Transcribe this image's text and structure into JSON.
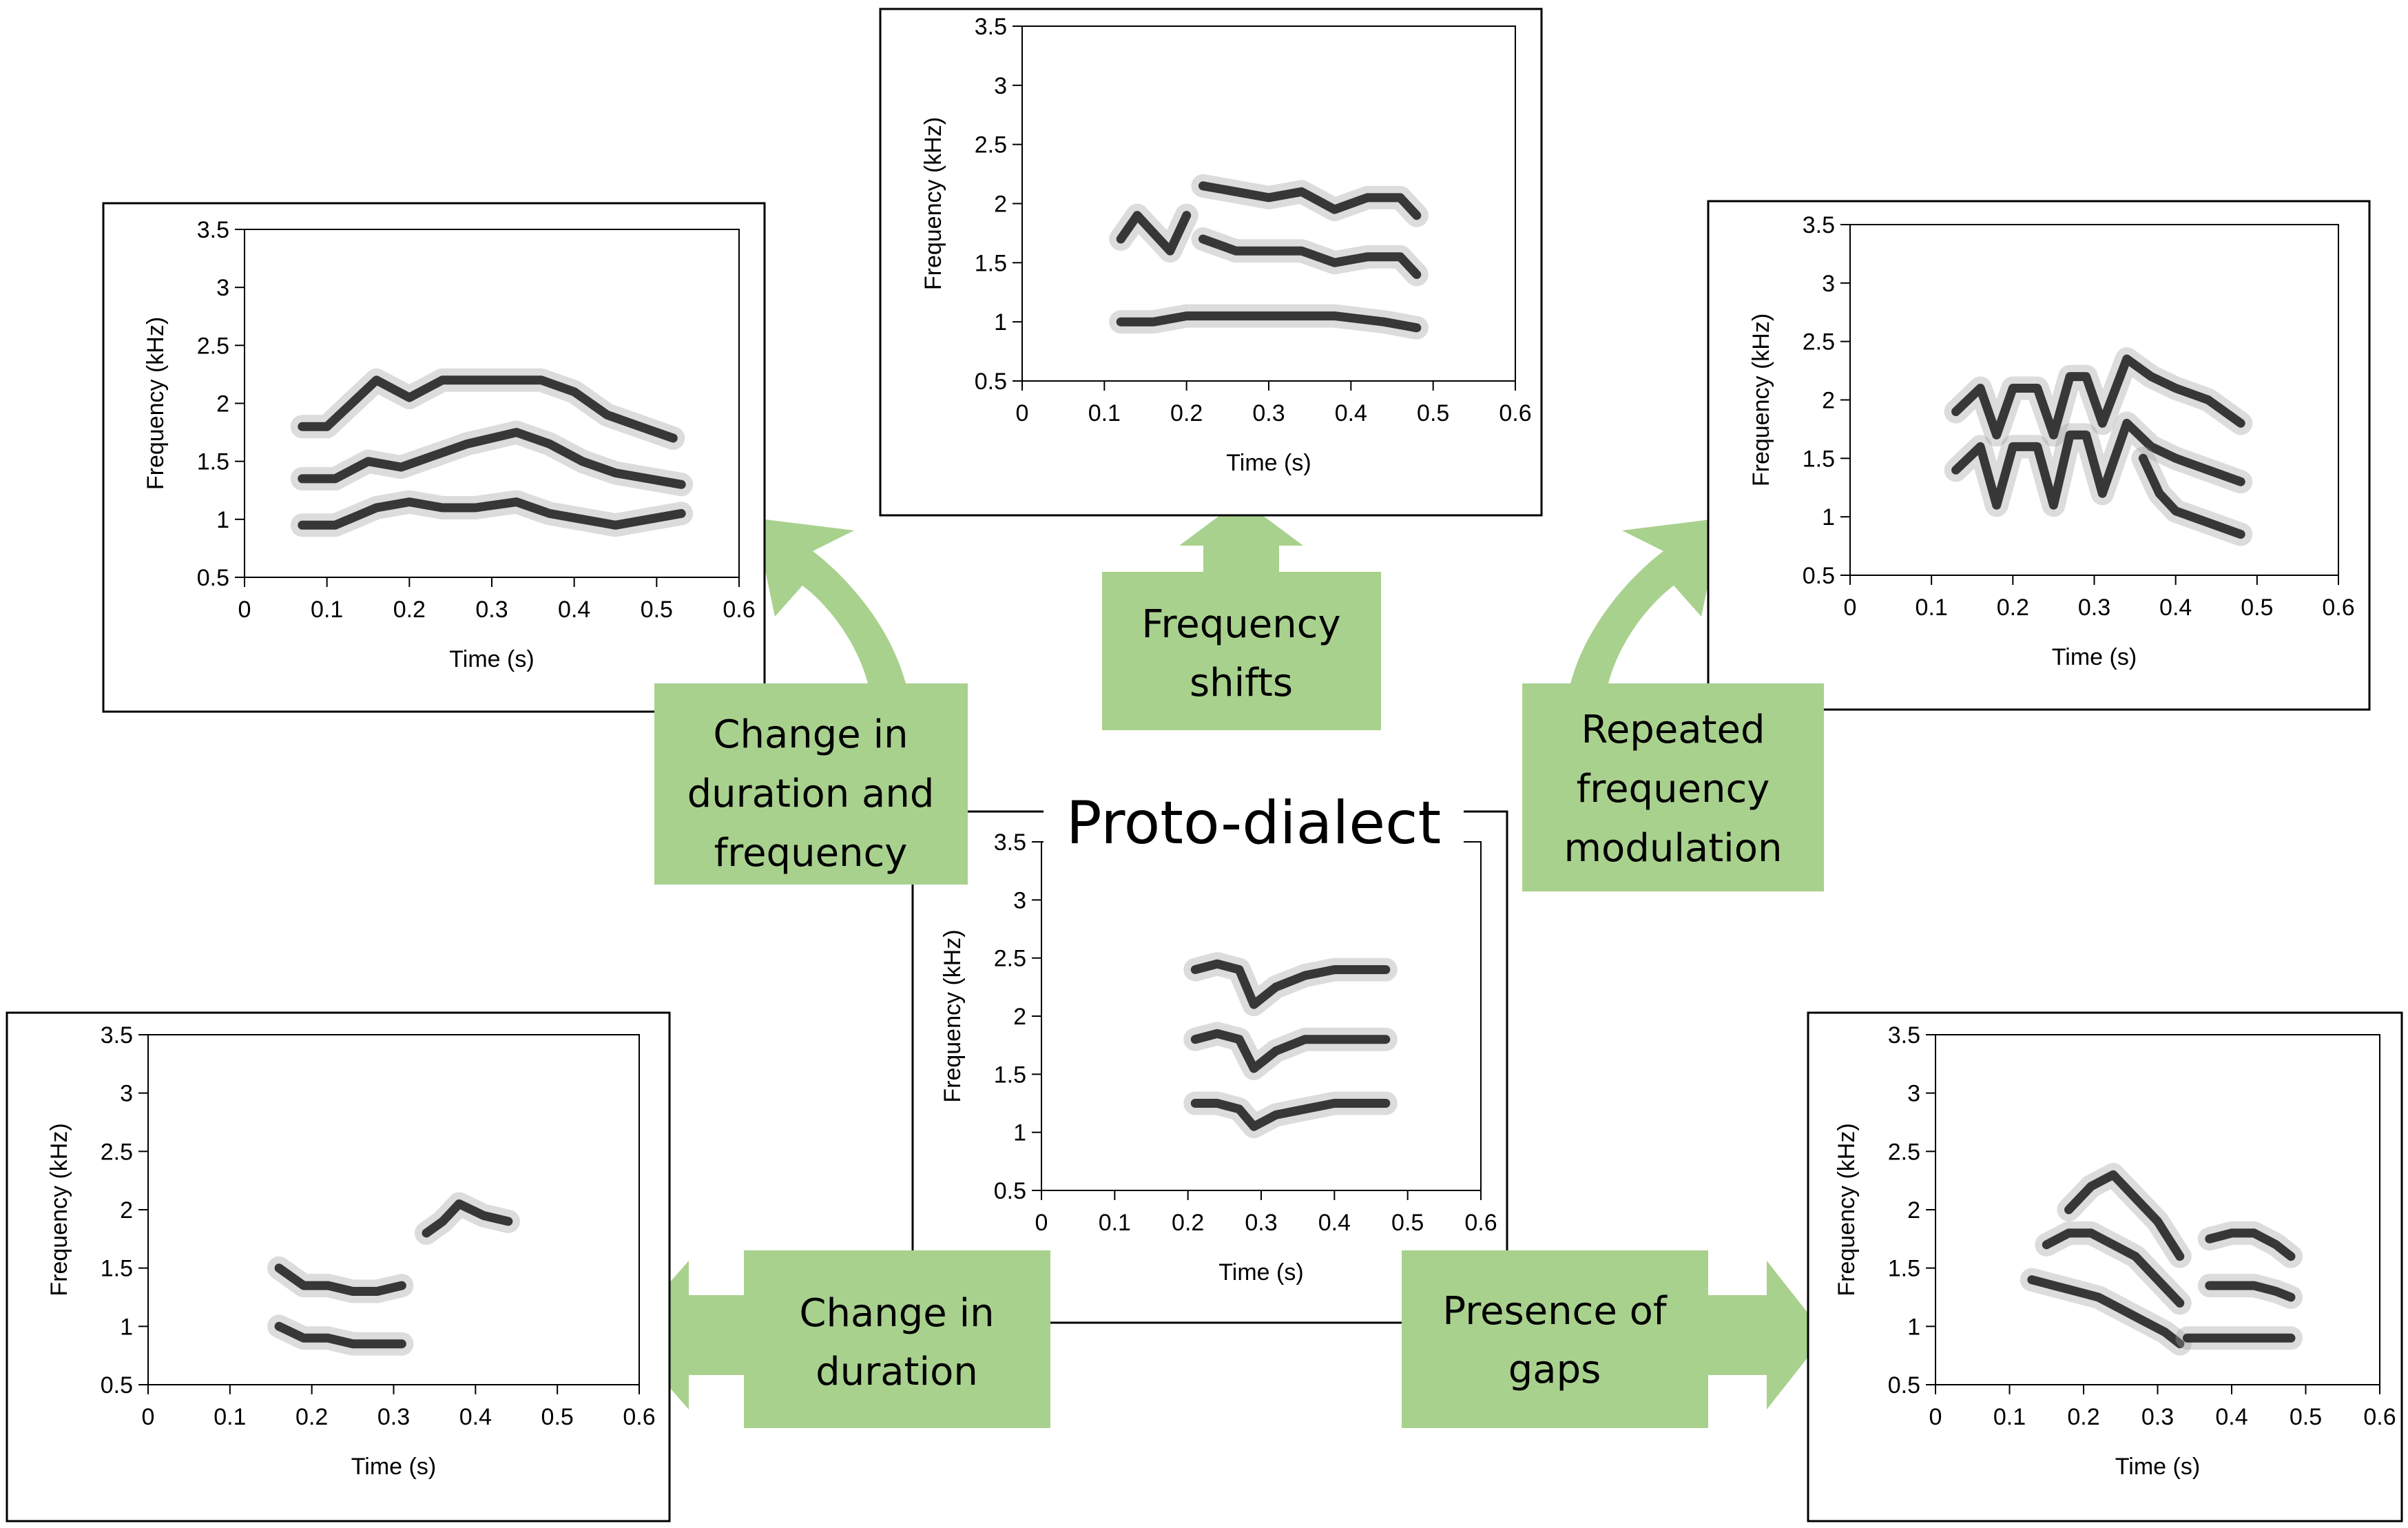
{
  "title": "Proto-dialect",
  "axis": {
    "xlabel": "Time (s)",
    "ylabel": "Frequency (kHz)",
    "xticks": [
      "0",
      "0.1",
      "0.2",
      "0.3",
      "0.4",
      "0.5",
      "0.6"
    ],
    "yticks": [
      "0.5",
      "1",
      "1.5",
      "2",
      "2.5",
      "3",
      "3.5"
    ]
  },
  "labels": {
    "duration_and_frequency": [
      "Change in",
      "duration and",
      "frequency"
    ],
    "frequency_shifts": [
      "Frequency",
      "shifts"
    ],
    "repeated_modulation": [
      "Repeated",
      "frequency",
      "modulation"
    ],
    "duration": [
      "Change in",
      "duration"
    ],
    "gaps": [
      "Presence of",
      "gaps"
    ]
  },
  "colors": {
    "label_fill": "#a9d18e",
    "arrow_fill": "#a9d18e",
    "frame": "#000000",
    "trace": "#1a1a1a"
  },
  "chart_data": [
    {
      "type": "spectrogram",
      "id": "proto-dialect",
      "xlim": [
        0,
        0.6
      ],
      "ylim": [
        0.5,
        3.5
      ],
      "bands": [
        {
          "x": [
            0.21,
            0.24,
            0.27,
            0.29,
            0.32,
            0.36,
            0.4,
            0.44,
            0.47
          ],
          "y": [
            2.4,
            2.45,
            2.4,
            2.1,
            2.25,
            2.35,
            2.4,
            2.4,
            2.4
          ]
        },
        {
          "x": [
            0.21,
            0.24,
            0.27,
            0.29,
            0.32,
            0.36,
            0.4,
            0.44,
            0.47
          ],
          "y": [
            1.8,
            1.85,
            1.8,
            1.55,
            1.7,
            1.8,
            1.8,
            1.8,
            1.8
          ]
        },
        {
          "x": [
            0.21,
            0.24,
            0.27,
            0.29,
            0.32,
            0.36,
            0.4,
            0.44,
            0.47
          ],
          "y": [
            1.25,
            1.25,
            1.2,
            1.05,
            1.15,
            1.2,
            1.25,
            1.25,
            1.25
          ]
        }
      ]
    },
    {
      "type": "spectrogram",
      "id": "frequency-shifts",
      "xlim": [
        0,
        0.6
      ],
      "ylim": [
        0.5,
        3.5
      ],
      "bands": [
        {
          "x": [
            0.12,
            0.14,
            0.16,
            0.18,
            0.2
          ],
          "y": [
            1.7,
            1.9,
            1.75,
            1.6,
            1.9
          ]
        },
        {
          "x": [
            0.22,
            0.26,
            0.3,
            0.34,
            0.38,
            0.42,
            0.46,
            0.48
          ],
          "y": [
            2.15,
            2.1,
            2.05,
            2.1,
            1.95,
            2.05,
            2.05,
            1.9
          ]
        },
        {
          "x": [
            0.22,
            0.26,
            0.3,
            0.34,
            0.38,
            0.42,
            0.46,
            0.48
          ],
          "y": [
            1.7,
            1.6,
            1.6,
            1.6,
            1.5,
            1.55,
            1.55,
            1.4
          ]
        },
        {
          "x": [
            0.12,
            0.16,
            0.2,
            0.26,
            0.32,
            0.38,
            0.44,
            0.48
          ],
          "y": [
            1.0,
            1.0,
            1.05,
            1.05,
            1.05,
            1.05,
            1.0,
            0.95
          ]
        }
      ]
    },
    {
      "type": "spectrogram",
      "id": "duration-and-frequency",
      "xlim": [
        0,
        0.6
      ],
      "ylim": [
        0.5,
        3.5
      ],
      "bands": [
        {
          "x": [
            0.07,
            0.1,
            0.13,
            0.16,
            0.2,
            0.24,
            0.28,
            0.32,
            0.36,
            0.4,
            0.44,
            0.48,
            0.52
          ],
          "y": [
            1.8,
            1.8,
            2.0,
            2.2,
            2.05,
            2.2,
            2.2,
            2.2,
            2.2,
            2.1,
            1.9,
            1.8,
            1.7
          ]
        },
        {
          "x": [
            0.07,
            0.11,
            0.15,
            0.19,
            0.23,
            0.27,
            0.33,
            0.37,
            0.41,
            0.45,
            0.49,
            0.53
          ],
          "y": [
            1.35,
            1.35,
            1.5,
            1.45,
            1.55,
            1.65,
            1.75,
            1.65,
            1.5,
            1.4,
            1.35,
            1.3
          ]
        },
        {
          "x": [
            0.07,
            0.11,
            0.16,
            0.2,
            0.24,
            0.28,
            0.33,
            0.37,
            0.41,
            0.45,
            0.49,
            0.53
          ],
          "y": [
            0.95,
            0.95,
            1.1,
            1.15,
            1.1,
            1.1,
            1.15,
            1.05,
            1.0,
            0.95,
            1.0,
            1.05
          ]
        }
      ]
    },
    {
      "type": "spectrogram",
      "id": "repeated-modulation",
      "xlim": [
        0,
        0.6
      ],
      "ylim": [
        0.5,
        3.5
      ],
      "bands": [
        {
          "x": [
            0.13,
            0.16,
            0.18,
            0.2,
            0.23,
            0.25,
            0.27,
            0.29,
            0.31,
            0.34,
            0.37,
            0.4,
            0.44,
            0.48
          ],
          "y": [
            1.9,
            2.1,
            1.7,
            2.1,
            2.1,
            1.7,
            2.2,
            2.2,
            1.8,
            2.35,
            2.2,
            2.1,
            2.0,
            1.8
          ]
        },
        {
          "x": [
            0.13,
            0.16,
            0.18,
            0.2,
            0.23,
            0.25,
            0.27,
            0.29,
            0.31,
            0.34,
            0.37,
            0.4,
            0.44,
            0.48
          ],
          "y": [
            1.4,
            1.6,
            1.1,
            1.6,
            1.6,
            1.1,
            1.7,
            1.7,
            1.2,
            1.8,
            1.6,
            1.5,
            1.4,
            1.3
          ]
        },
        {
          "x": [
            0.36,
            0.38,
            0.4,
            0.44,
            0.48
          ],
          "y": [
            1.5,
            1.2,
            1.05,
            0.95,
            0.85
          ]
        }
      ]
    },
    {
      "type": "spectrogram",
      "id": "duration",
      "xlim": [
        0,
        0.6
      ],
      "ylim": [
        0.5,
        3.5
      ],
      "bands": [
        {
          "x": [
            0.16,
            0.19,
            0.22,
            0.25,
            0.28,
            0.31
          ],
          "y": [
            1.5,
            1.35,
            1.35,
            1.3,
            1.3,
            1.35
          ]
        },
        {
          "x": [
            0.16,
            0.19,
            0.22,
            0.25,
            0.28,
            0.31
          ],
          "y": [
            1.0,
            0.9,
            0.9,
            0.85,
            0.85,
            0.85
          ]
        },
        {
          "x": [
            0.34,
            0.36,
            0.38,
            0.41,
            0.44
          ],
          "y": [
            1.8,
            1.9,
            2.05,
            1.95,
            1.9
          ]
        }
      ]
    },
    {
      "type": "spectrogram",
      "id": "gaps",
      "xlim": [
        0,
        0.6
      ],
      "ylim": [
        0.5,
        3.5
      ],
      "bands": [
        {
          "x": [
            0.18,
            0.21,
            0.24,
            0.27,
            0.3,
            0.33
          ],
          "y": [
            2.0,
            2.2,
            2.3,
            2.1,
            1.9,
            1.6
          ]
        },
        {
          "x": [
            0.15,
            0.18,
            0.21,
            0.24,
            0.27,
            0.3,
            0.33
          ],
          "y": [
            1.7,
            1.8,
            1.8,
            1.7,
            1.6,
            1.4,
            1.2
          ]
        },
        {
          "x": [
            0.13,
            0.16,
            0.19,
            0.22,
            0.25,
            0.28,
            0.31,
            0.33
          ],
          "y": [
            1.4,
            1.35,
            1.3,
            1.25,
            1.15,
            1.05,
            0.95,
            0.85
          ]
        },
        {
          "x": [
            0.37,
            0.4,
            0.43,
            0.46,
            0.48
          ],
          "y": [
            1.75,
            1.8,
            1.8,
            1.7,
            1.6
          ]
        },
        {
          "x": [
            0.37,
            0.4,
            0.43,
            0.46,
            0.48
          ],
          "y": [
            1.35,
            1.35,
            1.35,
            1.3,
            1.25
          ]
        },
        {
          "x": [
            0.34,
            0.37,
            0.4,
            0.43,
            0.46,
            0.48
          ],
          "y": [
            0.9,
            0.9,
            0.9,
            0.9,
            0.9,
            0.9
          ]
        }
      ]
    }
  ]
}
